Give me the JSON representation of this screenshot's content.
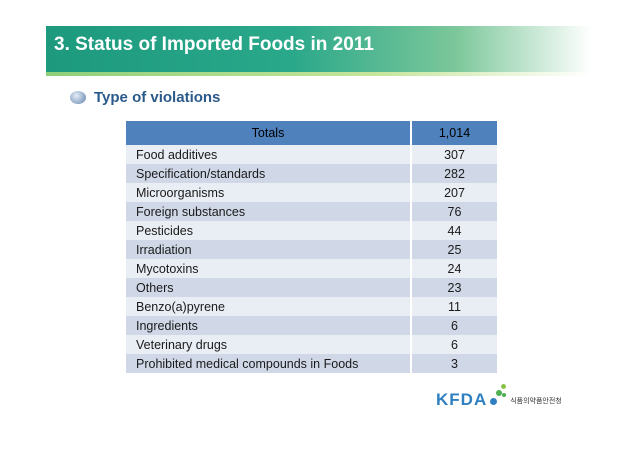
{
  "slide": {
    "title": "3. Status of Imported Foods in 2011",
    "section_title": "Type of violations"
  },
  "table": {
    "header": {
      "label": "Totals",
      "value": "1,014"
    },
    "rows": [
      {
        "label": "Food additives",
        "value": "307"
      },
      {
        "label": "Specification/standards",
        "value": "282"
      },
      {
        "label": "Microorganisms",
        "value": "207"
      },
      {
        "label": "Foreign substances",
        "value": "76"
      },
      {
        "label": "Pesticides",
        "value": "44"
      },
      {
        "label": "Irradiation",
        "value": "25"
      },
      {
        "label": "Mycotoxins",
        "value": "24"
      },
      {
        "label": "Others",
        "value": "23"
      },
      {
        "label": "Benzo(a)pyrene",
        "value": "11"
      },
      {
        "label": "Ingredients",
        "value": "6"
      },
      {
        "label": "Veterinary drugs",
        "value": "6"
      },
      {
        "label": "Prohibited medical compounds in Foods",
        "value": "3"
      }
    ]
  },
  "logo": {
    "name": "KFDA",
    "subtitle": "식품의약품안전청"
  },
  "colors": {
    "header_green": "#1d9a7e",
    "table_header": "#4f81bd",
    "row_light": "#e9edf4",
    "row_dark": "#d0d8e8",
    "logo_blue": "#2f7fc1",
    "logo_green": "#4caf50"
  }
}
